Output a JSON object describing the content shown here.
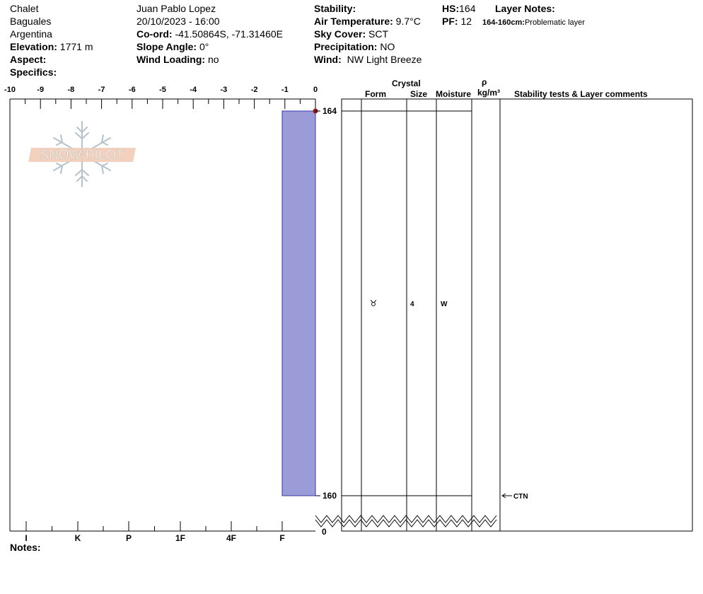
{
  "header": {
    "location": "Chalet",
    "region": "Baguales",
    "country": "Argentina",
    "elevation_label": "Elevation:",
    "elevation_value": "1771 m",
    "aspect_label": "Aspect:",
    "specifics_label": "Specifics:",
    "observer": "Juan Pablo  Lopez",
    "datetime": "20/10/2023 - 16:00",
    "coord_label": "Co-ord:",
    "coord_value": "-41.50864S, -71.31460E",
    "slope_label": "Slope Angle:",
    "slope_value": "0°",
    "wind_loading_label": "Wind Loading:",
    "wind_loading_value": "no",
    "stability_label": "Stability:",
    "air_temp_label": "Air Temperature:",
    "air_temp_value": "9.7°C",
    "sky_label": "Sky Cover:",
    "sky_value": "SCT",
    "precip_label": "Precipitation:",
    "precip_value": "NO",
    "wind_label": "Wind:",
    "wind_value": "NW Light Breeze",
    "hs_label": "HS:",
    "hs_value": "164",
    "pf_label": "PF:",
    "pf_value": "12",
    "layer_notes_label": "Layer Notes:",
    "layer_note_range": "164-160cm:",
    "layer_note_text": "Problematic layer"
  },
  "logo": {
    "text": "SNOW PILOT"
  },
  "columns": {
    "crystal": "Crystal",
    "form": "Form",
    "size": "Size",
    "moisture": "Moisture",
    "rho": "ρ",
    "density_unit": "kg/m³",
    "stability_comments": "Stability tests & Layer comments"
  },
  "notes_label": "Notes:",
  "chart_data": {
    "type": "bar",
    "title": "",
    "temperature_axis": {
      "ticks": [
        "-10",
        "-9",
        "-8",
        "-7",
        "-6",
        "-5",
        "-4",
        "-3",
        "-2",
        "-1",
        "0"
      ],
      "range": [
        -10,
        0
      ]
    },
    "hardness_axis": {
      "ticks": [
        "I",
        "K",
        "P",
        "1F",
        "4F",
        "F"
      ]
    },
    "depth_labels": [
      "164",
      "160",
      "0"
    ],
    "layers": [
      {
        "top": 164,
        "bottom": 160,
        "hardness": "F",
        "hardness_index": 1,
        "form": "♉",
        "size": "4",
        "moisture": "W",
        "color": "#9b9bd8"
      }
    ],
    "temperature_profile": [
      {
        "depth": 164,
        "temp": 0
      }
    ],
    "stability_tests": [
      {
        "depth": 160,
        "label": "CTN"
      }
    ],
    "temp_point_color": "#8b1a1a"
  }
}
